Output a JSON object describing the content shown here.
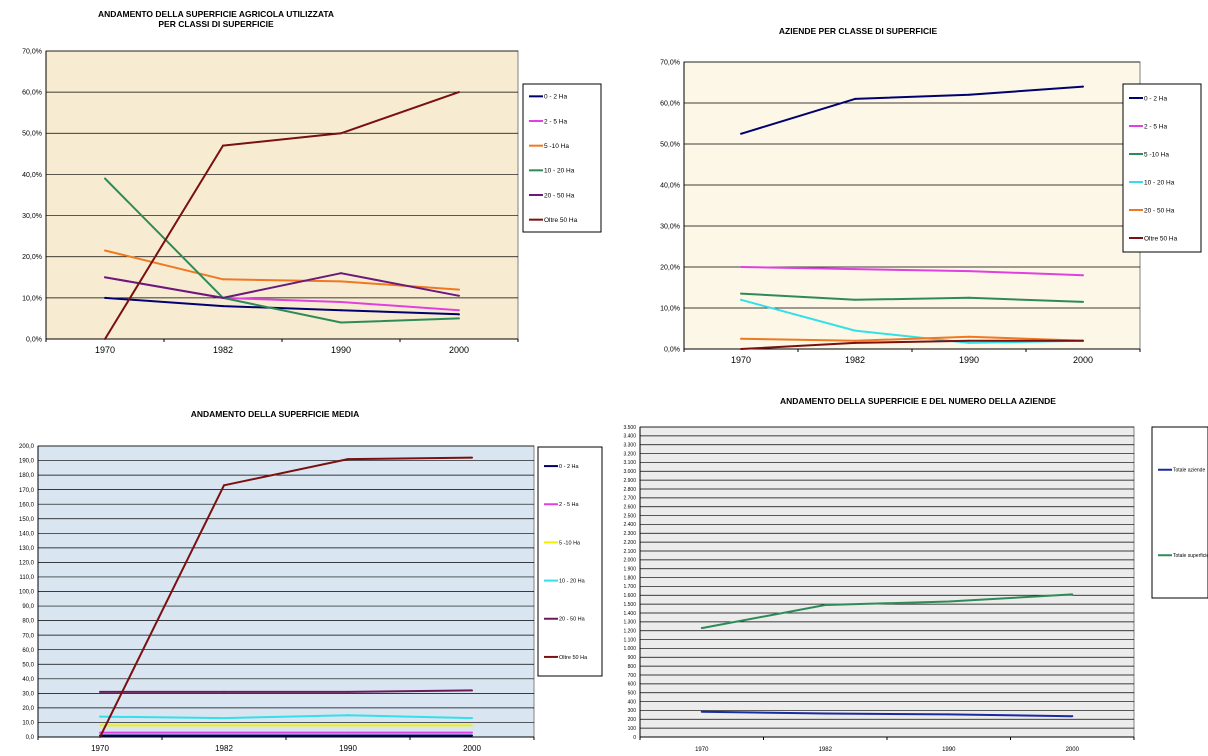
{
  "chart_data": [
    {
      "type": "line",
      "title": "ANDAMENTO DELLA SUPERFICIE AGRICOLA UTILIZZATA\nPER CLASSI DI SUPERFICIE",
      "categories": [
        "1970",
        "1982",
        "1990",
        "2000"
      ],
      "ylim": [
        0,
        70
      ],
      "ytick_step": 10,
      "ytick_format": "pct",
      "legend_position": "right",
      "plot_background": "#f7ecd2",
      "series": [
        {
          "name": "0 - 2  Ha",
          "color": "#00006e",
          "values": [
            10,
            8,
            7,
            6
          ]
        },
        {
          "name": "2 - 5  Ha",
          "color": "#e040e0",
          "values": [
            15,
            10,
            9,
            7
          ]
        },
        {
          "name": "5 -10  Ha",
          "color": "#f07820",
          "values": [
            21.5,
            14.5,
            14,
            12
          ]
        },
        {
          "name": "10 - 20 Ha",
          "color": "#2e8b57",
          "values": [
            39,
            10,
            4,
            5
          ]
        },
        {
          "name": "20 - 50 Ha",
          "color": "#6a1a7a",
          "values": [
            15,
            10,
            16,
            10.5
          ]
        },
        {
          "name": "Oltre 50 Ha",
          "color": "#7a1010",
          "values": [
            0,
            47,
            50,
            60
          ]
        }
      ]
    },
    {
      "type": "line",
      "title": "AZIENDE PER CLASSE DI SUPERFICIE",
      "categories": [
        "1970",
        "1982",
        "1990",
        "2000"
      ],
      "ylim": [
        0,
        70
      ],
      "ytick_step": 10,
      "ytick_format": "pct",
      "legend_position": "right",
      "plot_background": "#fcf7e6",
      "series": [
        {
          "name": "0 - 2  Ha",
          "color": "#00006e",
          "values": [
            52.5,
            61,
            62,
            64
          ]
        },
        {
          "name": "2 - 5  Ha",
          "color": "#e040e0",
          "values": [
            20,
            19.5,
            19,
            18
          ]
        },
        {
          "name": "5 -10  Ha",
          "color": "#2e8b57",
          "values": [
            13.5,
            12,
            12.5,
            11.5
          ]
        },
        {
          "name": "10 - 20 Ha",
          "color": "#33e0e8",
          "values": [
            12,
            4.5,
            1.5,
            2
          ]
        },
        {
          "name": "20 - 50 Ha",
          "color": "#f07820",
          "values": [
            2.5,
            2,
            3,
            2
          ]
        },
        {
          "name": "Oltre 50 Ha",
          "color": "#7a1010",
          "values": [
            0,
            1.5,
            2,
            2
          ]
        }
      ]
    },
    {
      "type": "line",
      "title": "ANDAMENTO DELLA SUPERFICIE MEDIA",
      "categories": [
        "1970",
        "1982",
        "1990",
        "2000"
      ],
      "ylim": [
        0,
        200
      ],
      "ytick_step": 10,
      "ytick_format": "dec1",
      "legend_position": "right",
      "plot_background": "#d9e6f2",
      "series": [
        {
          "name": "0 - 2  Ha",
          "color": "#00006e",
          "values": [
            1,
            1,
            1,
            1
          ]
        },
        {
          "name": "2 - 5  Ha",
          "color": "#e040e0",
          "values": [
            3,
            3,
            3,
            3
          ]
        },
        {
          "name": "5 -10  Ha",
          "color": "#f0f000",
          "values": [
            8,
            8,
            8,
            8
          ]
        },
        {
          "name": "10 - 20 Ha",
          "color": "#33e0e8",
          "values": [
            14,
            13,
            15,
            13
          ]
        },
        {
          "name": "20 - 50 Ha",
          "color": "#6a1a5a",
          "values": [
            31,
            31,
            31,
            32
          ]
        },
        {
          "name": "Oltre 50 Ha",
          "color": "#7a1010",
          "values": [
            0,
            173,
            191,
            192
          ]
        }
      ]
    },
    {
      "type": "line",
      "title": "ANDAMENTO DELLA SUPERFICIE E DEL NUMERO DELLA AZIENDE",
      "categories": [
        "1970",
        "1982",
        "1990",
        "2000"
      ],
      "ylim": [
        0,
        3500
      ],
      "ytick_step": 100,
      "ytick_format": "thousands",
      "legend_position": "right",
      "plot_background": "#ececec",
      "series": [
        {
          "name": "Totale aziende",
          "color": "#1a2aa0",
          "values": [
            285,
            265,
            255,
            235
          ]
        },
        {
          "name": "Totale superficie",
          "color": "#2e8b57",
          "values": [
            1230,
            1490,
            1530,
            1610
          ]
        }
      ]
    }
  ]
}
